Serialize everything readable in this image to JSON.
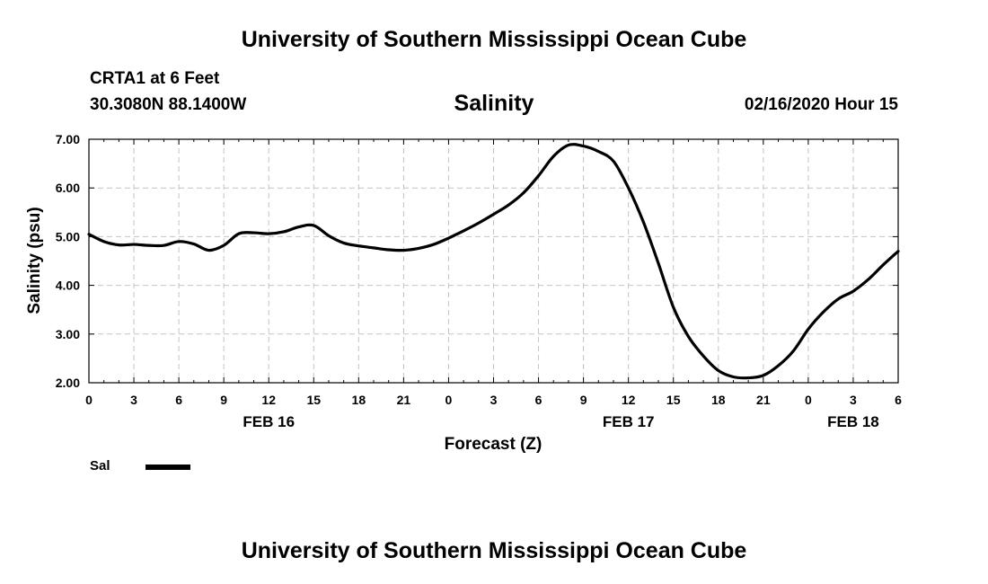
{
  "header": {
    "title": "University of Southern Mississippi Ocean Cube",
    "station": "CRTA1 at 6 Feet",
    "coords": "30.3080N 88.1400W",
    "variable": "Salinity",
    "datetime": "02/16/2020 Hour 15"
  },
  "footer": {
    "title": "University of Southern Mississippi Ocean Cube"
  },
  "chart_data": {
    "type": "line",
    "title": "Salinity",
    "xlabel": "Forecast (Z)",
    "ylabel": "Salinity (psu)",
    "xlim": [
      0,
      54
    ],
    "ylim": [
      2.0,
      7.0
    ],
    "x_ticks": [
      0,
      3,
      6,
      9,
      12,
      15,
      18,
      21,
      24,
      27,
      30,
      33,
      36,
      39,
      42,
      45,
      48,
      51,
      54
    ],
    "x_tick_labels": [
      "0",
      "3",
      "6",
      "9",
      "12",
      "15",
      "18",
      "21",
      "0",
      "3",
      "6",
      "9",
      "12",
      "15",
      "18",
      "21",
      "0",
      "3",
      "6"
    ],
    "y_ticks": [
      2.0,
      3.0,
      4.0,
      5.0,
      6.0,
      7.0
    ],
    "y_tick_labels": [
      "2.00",
      "3.00",
      "4.00",
      "5.00",
      "6.00",
      "7.00"
    ],
    "date_labels": [
      {
        "x": 12,
        "label": "FEB 16"
      },
      {
        "x": 36,
        "label": "FEB 17"
      },
      {
        "x": 51,
        "label": "FEB 18"
      }
    ],
    "grid": true,
    "series": [
      {
        "name": "Sal",
        "color": "#000000",
        "x": [
          0,
          1,
          2,
          3,
          4,
          5,
          6,
          7,
          8,
          9,
          10,
          11,
          12,
          13,
          14,
          15,
          16,
          17,
          18,
          19,
          20,
          21,
          22,
          23,
          24,
          25,
          26,
          27,
          28,
          29,
          30,
          31,
          32,
          33,
          34,
          35,
          36,
          37,
          38,
          39,
          40,
          41,
          42,
          43,
          44,
          45,
          46,
          47,
          48,
          49,
          50,
          51,
          52,
          53,
          54
        ],
        "y": [
          5.05,
          4.9,
          4.83,
          4.84,
          4.82,
          4.82,
          4.9,
          4.85,
          4.72,
          4.82,
          5.06,
          5.08,
          5.06,
          5.1,
          5.2,
          5.23,
          5.02,
          4.87,
          4.81,
          4.77,
          4.73,
          4.72,
          4.76,
          4.84,
          4.97,
          5.12,
          5.28,
          5.46,
          5.65,
          5.9,
          6.25,
          6.65,
          6.88,
          6.86,
          6.75,
          6.55,
          6.0,
          5.3,
          4.45,
          3.55,
          2.95,
          2.55,
          2.25,
          2.12,
          2.1,
          2.15,
          2.35,
          2.65,
          3.1,
          3.45,
          3.72,
          3.88,
          4.12,
          4.42,
          4.7
        ]
      }
    ],
    "legend": {
      "position": "bottom-left"
    }
  }
}
